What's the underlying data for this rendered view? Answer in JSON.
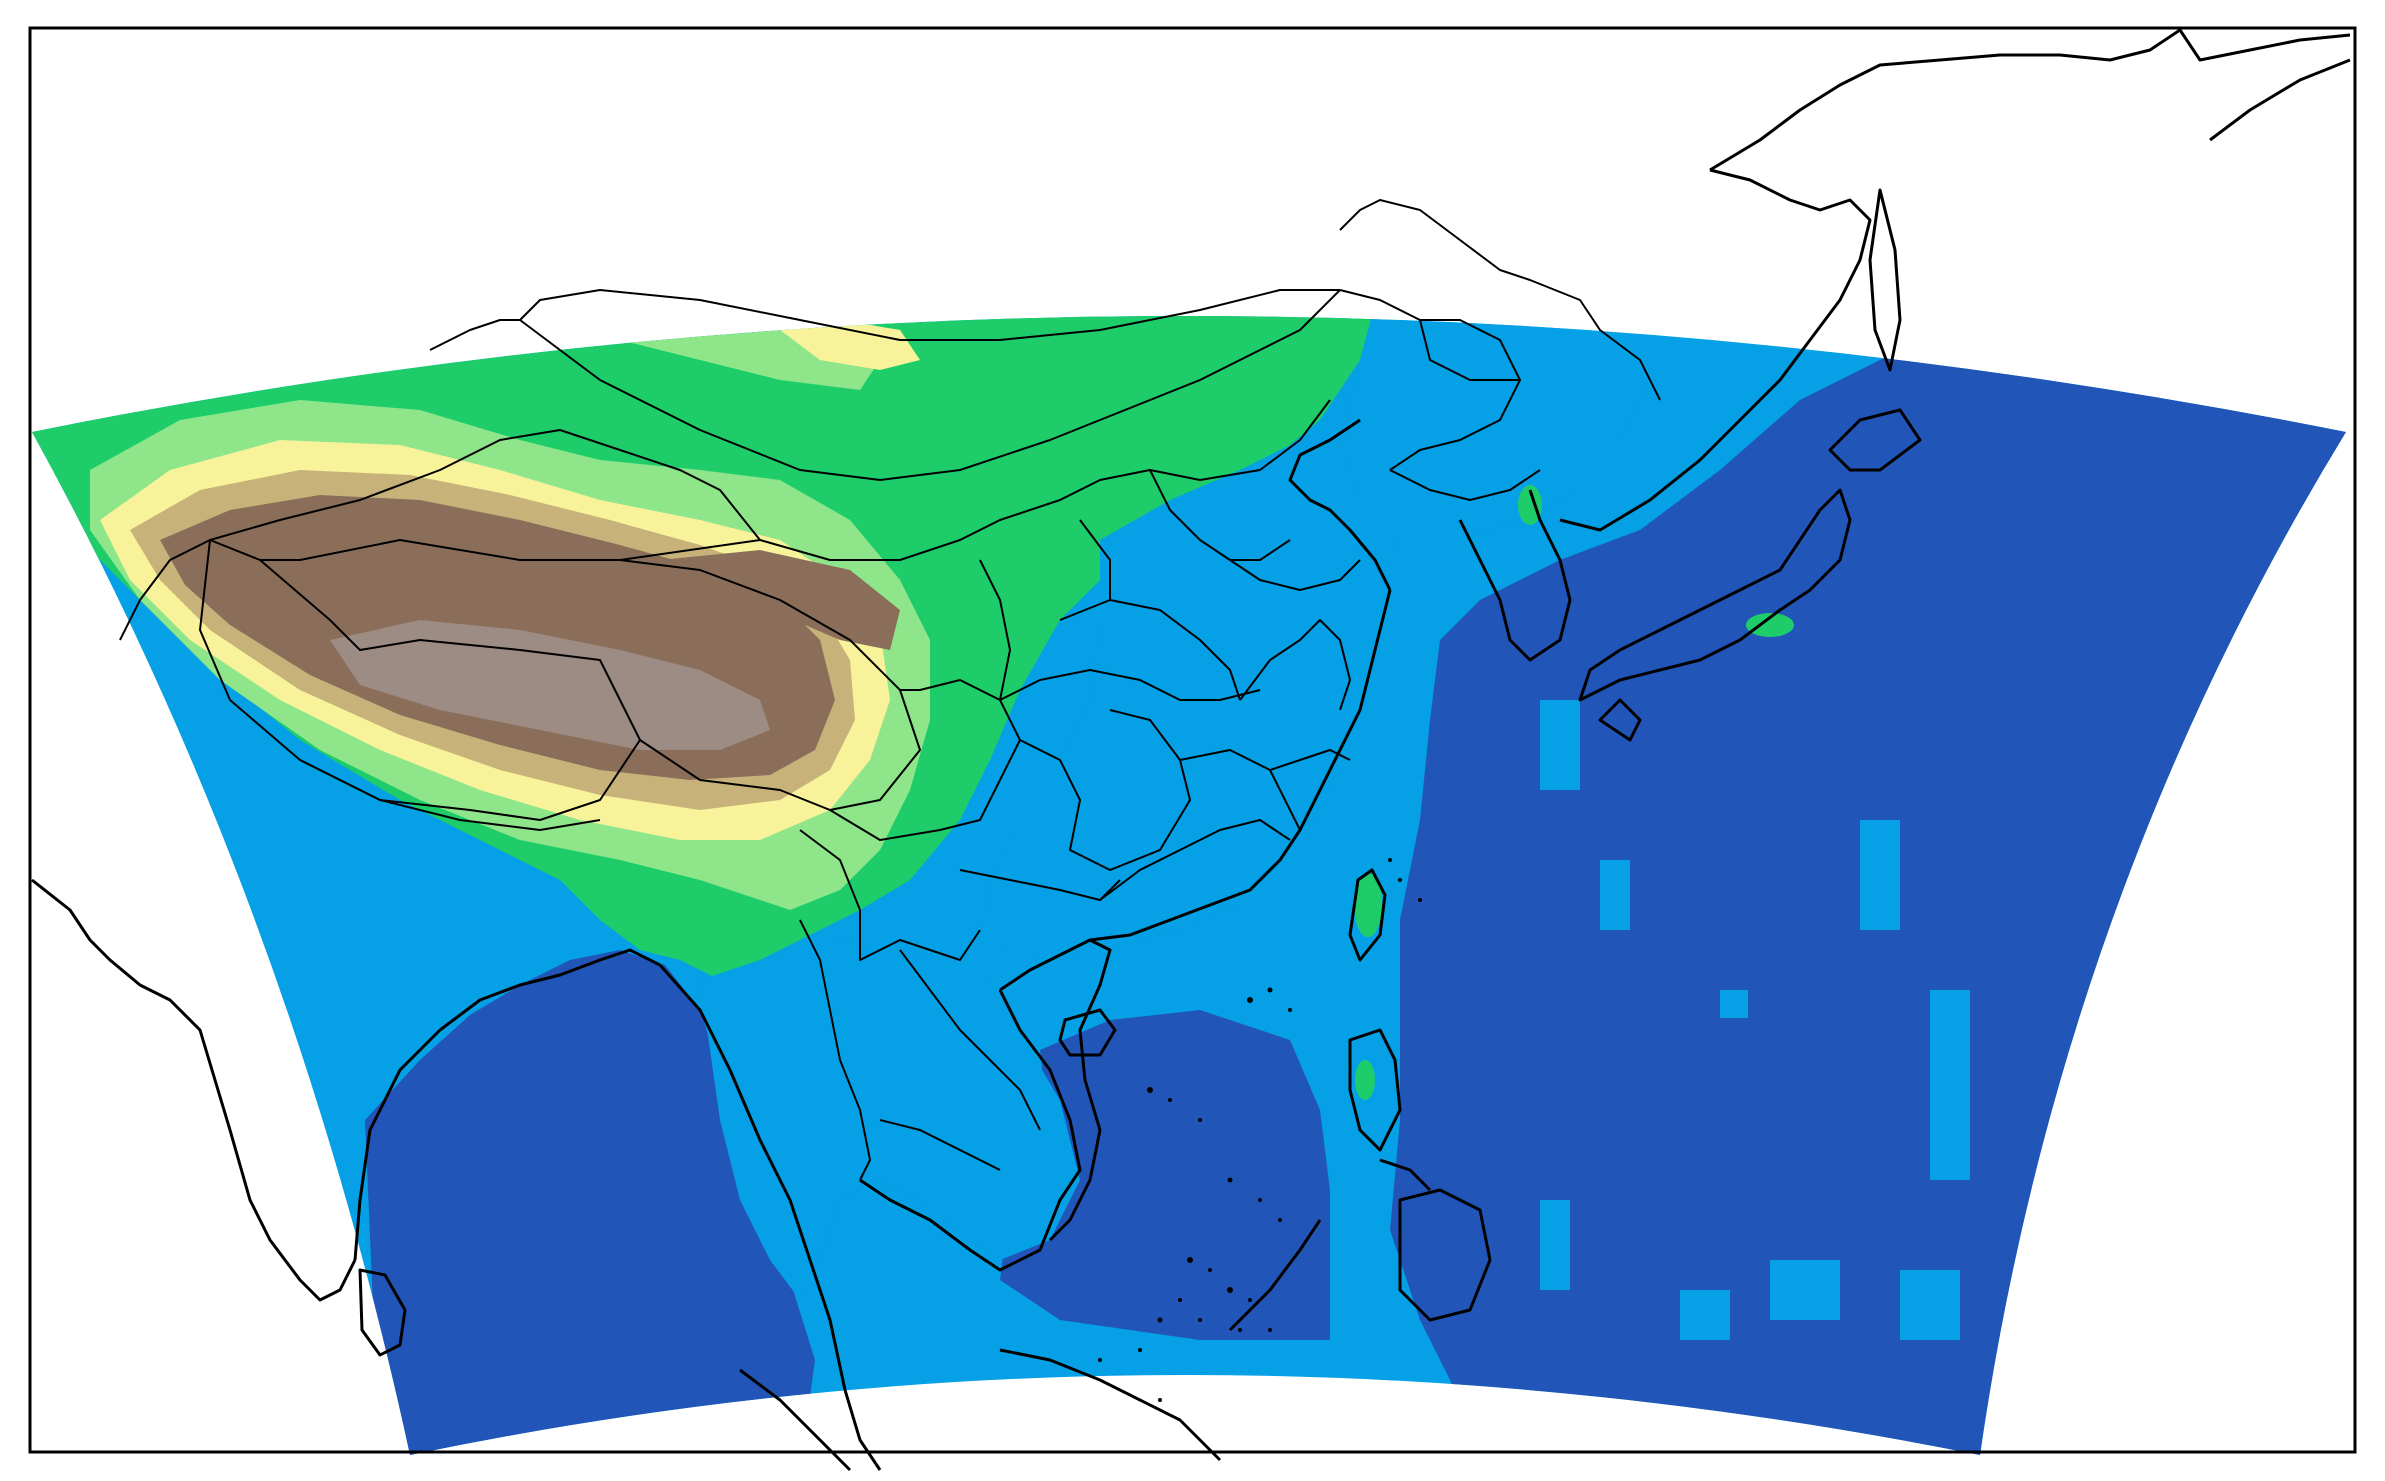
{
  "map": {
    "projection": "lambert-conic",
    "frame": "black-border",
    "colors": {
      "deep_ocean": "#2255b8",
      "shallow_ocean": "#05a0e6",
      "lowland": "#1ecd6a",
      "low_hills": "#8ee58a",
      "hills": "#f8f39a",
      "high_plateau": "#c7b27a",
      "mountain": "#8b6e5a",
      "high_mountain": "#9d8c84",
      "coastline": "#000000",
      "background": "#ffffff"
    },
    "layers": [
      "terrain-elevation-fill",
      "ocean-bathymetry-fill",
      "coastlines",
      "province-borders",
      "country-borders"
    ]
  }
}
